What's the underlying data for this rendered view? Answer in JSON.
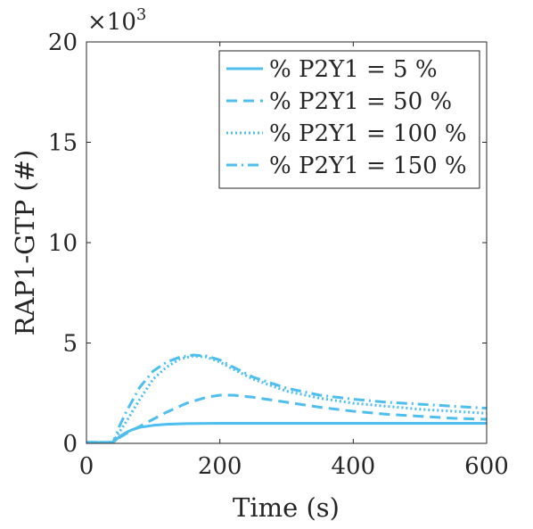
{
  "chart_data": {
    "type": "line",
    "xlabel": "Time (s)",
    "ylabel": "RAP1-GTP (#)",
    "y_multiplier_label": "×10",
    "y_multiplier_exp": "3",
    "xlim": [
      0,
      600
    ],
    "ylim": [
      0,
      20
    ],
    "xticks": [
      0,
      200,
      400,
      600
    ],
    "yticks": [
      0,
      5,
      10,
      15,
      20
    ],
    "xtick_labels": [
      "0",
      "200",
      "400",
      "600"
    ],
    "ytick_labels": [
      "0",
      "5",
      "10",
      "15",
      "20"
    ],
    "grid": false,
    "legend_position": "top-right",
    "line_color": "#4DBEEE",
    "series": [
      {
        "name": "% P2Y1 = 5 %",
        "dash": "solid",
        "x": [
          0,
          40,
          50,
          60,
          70,
          80,
          100,
          120,
          150,
          200,
          300,
          400,
          500,
          600
        ],
        "y": [
          0.05,
          0.05,
          0.35,
          0.55,
          0.7,
          0.8,
          0.9,
          0.95,
          0.98,
          1.0,
          1.0,
          1.0,
          1.0,
          1.0
        ]
      },
      {
        "name": "% P2Y1 = 50 %",
        "dash": "dashed",
        "x": [
          0,
          40,
          50,
          60,
          80,
          100,
          120,
          150,
          180,
          200,
          220,
          250,
          300,
          350,
          400,
          450,
          500,
          550,
          600
        ],
        "y": [
          0.05,
          0.05,
          0.3,
          0.5,
          0.85,
          1.2,
          1.55,
          2.0,
          2.3,
          2.4,
          2.4,
          2.3,
          2.05,
          1.8,
          1.6,
          1.45,
          1.35,
          1.25,
          1.2
        ]
      },
      {
        "name": "% P2Y1 = 100 %",
        "dash": "dotted",
        "x": [
          0,
          40,
          50,
          60,
          80,
          100,
          120,
          140,
          160,
          180,
          200,
          220,
          250,
          300,
          350,
          400,
          450,
          500,
          550,
          600
        ],
        "y": [
          0.05,
          0.05,
          0.6,
          1.1,
          2.2,
          3.2,
          3.8,
          4.2,
          4.35,
          4.3,
          4.05,
          3.7,
          3.2,
          2.6,
          2.25,
          2.0,
          1.85,
          1.7,
          1.6,
          1.5
        ]
      },
      {
        "name": "% P2Y1 = 150 %",
        "dash": "dashdot",
        "x": [
          0,
          40,
          50,
          60,
          80,
          100,
          120,
          140,
          160,
          180,
          200,
          220,
          250,
          300,
          350,
          400,
          450,
          500,
          550,
          600
        ],
        "y": [
          0.05,
          0.05,
          0.9,
          1.6,
          2.8,
          3.6,
          4.05,
          4.3,
          4.4,
          4.35,
          4.15,
          3.8,
          3.3,
          2.75,
          2.4,
          2.2,
          2.05,
          1.95,
          1.85,
          1.75
        ]
      }
    ]
  }
}
